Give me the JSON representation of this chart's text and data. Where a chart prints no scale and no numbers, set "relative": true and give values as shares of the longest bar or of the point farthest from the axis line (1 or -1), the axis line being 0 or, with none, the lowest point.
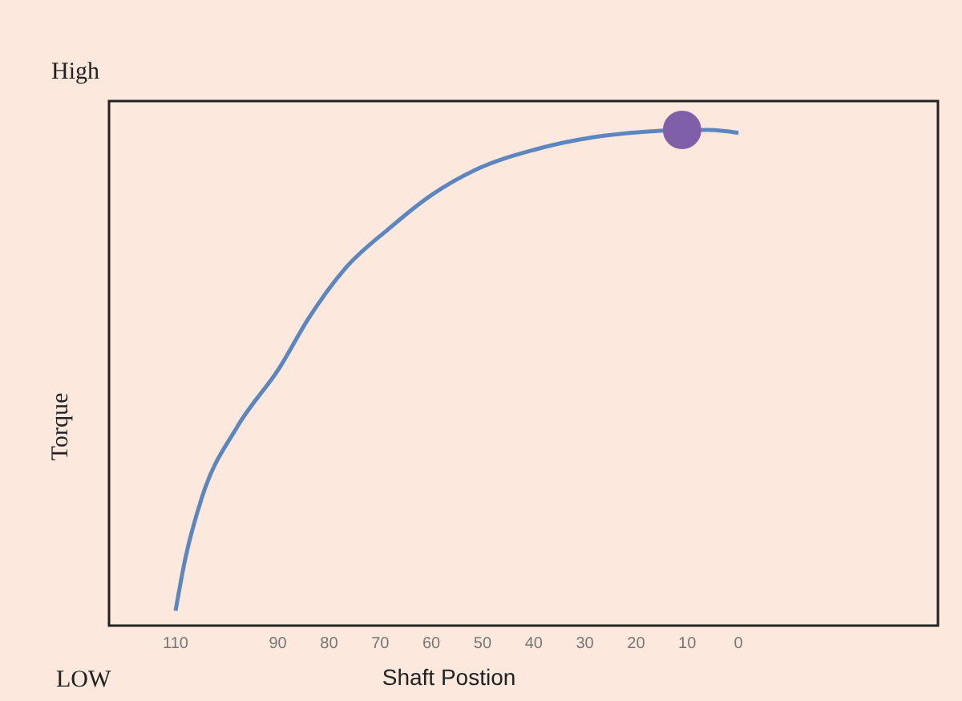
{
  "chart_data": {
    "type": "line",
    "relative": true,
    "xlabel": "Shaft Postion",
    "ylabel": "Torque",
    "annotations": [
      "High",
      "LOW"
    ],
    "xlim": [
      123,
      -39
    ],
    "xticks": [
      110,
      90,
      80,
      70,
      60,
      50,
      40,
      30,
      20,
      10,
      0
    ],
    "grid": false,
    "line_style": "solid",
    "series": [
      {
        "color": "#5b86c0",
        "x": [
          110,
          108.2,
          104.8,
          98,
          89.7,
          84,
          76.9,
          68.4,
          59.8,
          51.3,
          39.9,
          28.5,
          17.1,
          11.1,
          5.7,
          0
        ],
        "values": [
          0.03,
          0.13,
          0.26,
          0.4,
          0.52,
          0.62,
          0.72,
          0.8,
          0.87,
          0.92,
          0.96,
          0.985,
          0.997,
          1,
          1,
          0.994
        ]
      },
      {
        "type": "scatter",
        "color": "#7f5fa8",
        "x": [
          11
        ],
        "values": [
          1
        ]
      }
    ]
  }
}
